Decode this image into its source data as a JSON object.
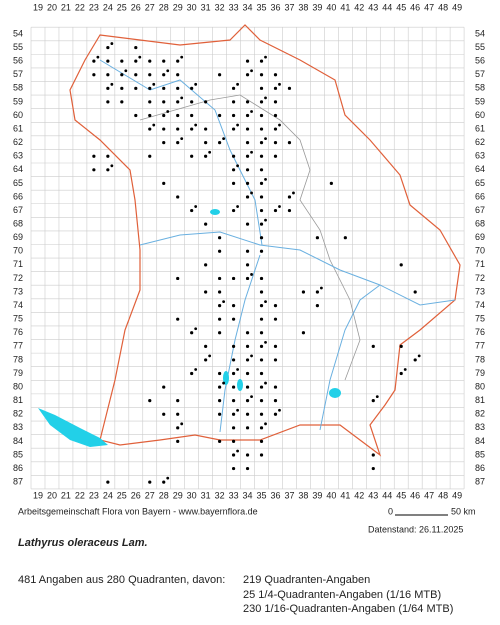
{
  "grid": {
    "x_labels": [
      19,
      20,
      21,
      22,
      23,
      24,
      25,
      26,
      27,
      28,
      29,
      30,
      31,
      32,
      33,
      34,
      35,
      36,
      37,
      38,
      39,
      40,
      41,
      42,
      43,
      44,
      45,
      46,
      47,
      48,
      49
    ],
    "y_labels": [
      54,
      55,
      56,
      57,
      58,
      59,
      60,
      61,
      62,
      63,
      64,
      65,
      66,
      67,
      68,
      69,
      70,
      71,
      72,
      73,
      74,
      75,
      76,
      77,
      78,
      79,
      80,
      81,
      82,
      83,
      84,
      85,
      86,
      87
    ]
  },
  "footer": {
    "credit": "Arbeitsgemeinschaft Flora von Bayern - www.bayernflora.de",
    "scale_start": "0",
    "scale_end": "50 km",
    "date": "Datenstand: 26.11.2025"
  },
  "species": "Lathyrus oleraceus Lam.",
  "summary": {
    "total": "481 Angaben aus 280 Quadranten, davon:",
    "lines": [
      "219 Quadranten-Angaben",
      "25 1/4-Quadranten-Angaben (1/16 MTB)",
      "230 1/16-Quadranten-Angaben (1/64 MTB)"
    ]
  }
}
